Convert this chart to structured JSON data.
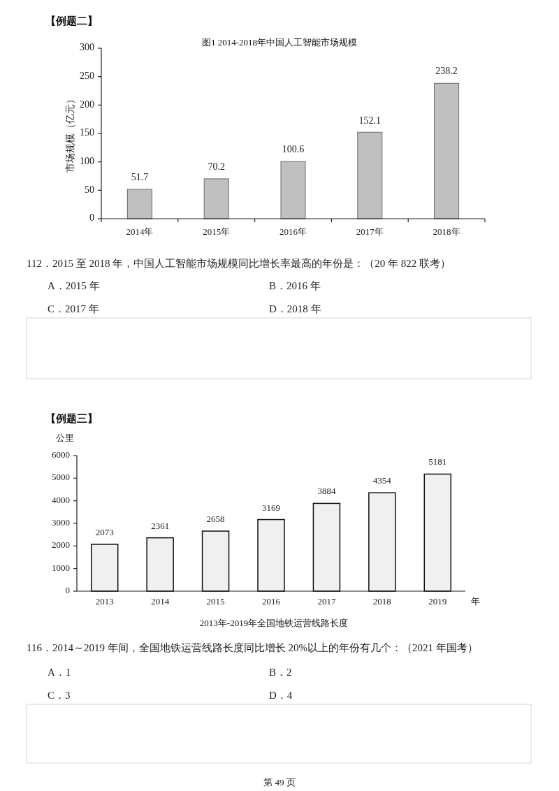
{
  "chart_data": [
    {
      "type": "bar",
      "title": "图1 2014-2018年中国人工智能市场规模",
      "ylabel": "市场规模（亿元）",
      "categories": [
        "2014年",
        "2015年",
        "2016年",
        "2017年",
        "2018年"
      ],
      "values": [
        51.7,
        70.2,
        100.6,
        152.1,
        238.2
      ],
      "color": "#c0c0c0",
      "ylim": [
        0,
        300
      ],
      "yticks": [
        0,
        50,
        100,
        150,
        200,
        250,
        300
      ],
      "data_labels": true,
      "annotations": [
        "【例题二】",
        "112．2015 至 2018 年，中国人工智能市场规模同比增长率最高的年份是：（20 年 822 联考）",
        "A．2015 年",
        "B．2016 年",
        "C．2017 年",
        "D．2018 年"
      ]
    },
    {
      "type": "bar",
      "title": "2013年-2019年全国地铁运营线路长度",
      "ylabel": "公里",
      "xlabel": "年",
      "categories": [
        "2013",
        "2014",
        "2015",
        "2016",
        "2017",
        "2018",
        "2019"
      ],
      "values": [
        2073,
        2361,
        2658,
        3169,
        3884,
        4354,
        5181
      ],
      "color": "#f0f0f0",
      "ylim": [
        0,
        6000
      ],
      "yticks": [
        0,
        1000,
        2000,
        3000,
        4000,
        5000,
        6000
      ],
      "data_labels": true,
      "annotations": [
        "【例题三】",
        "116．2014～2019 年间，全国地铁运营线路长度同比增长 20%以上的年份有几个：（2021 年国考）",
        "A．1",
        "B．2",
        "C．3",
        "D．4",
        "第 49 页"
      ]
    }
  ]
}
